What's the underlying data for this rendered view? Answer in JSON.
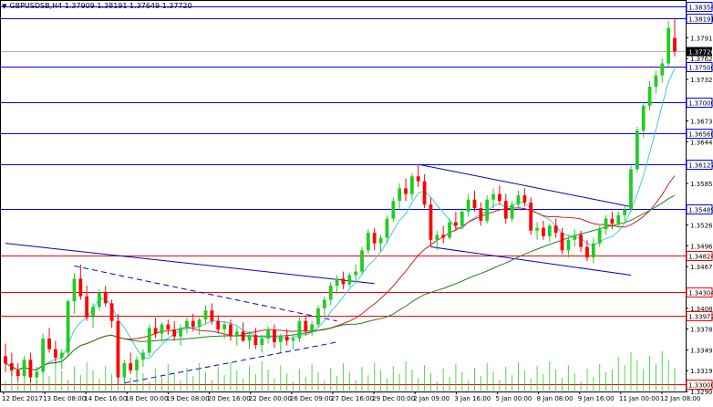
{
  "chart_header": {
    "menu_glyph": "▼",
    "symbol_text": "GBPUSDSB,H4",
    "ohlc_text": "1.37909 1.38191 1.37649 1.37720"
  },
  "chart_data": {
    "type": "candlestick",
    "symbol": "GBPUSDSB",
    "timeframe": "H4",
    "ylim": [
      1.329,
      1.3845
    ],
    "price_ticks": [
      "1.37915",
      "1.37620",
      "1.37325",
      "1.37030",
      "1.36735",
      "1.36440",
      "1.36145",
      "1.35850",
      "1.35555",
      "1.35260",
      "1.34965",
      "1.34670",
      "1.34375",
      "1.34080",
      "1.33785",
      "1.33490",
      "1.33195",
      "1.32900"
    ],
    "x_labels": [
      "12 Dec 2017",
      "13 Dec 08:00",
      "14 Dec 16:00",
      "18 Dec 00:00",
      "19 Dec 08:00",
      "20 Dec 16:00",
      "22 Dec 00:00",
      "26 Dec 09:00",
      "27 Dec 16:00",
      "29 Dec 00:00",
      "2 Jan 09:00",
      "3 Jan 16:00",
      "5 Jan 00:00",
      "8 Jan 08:00",
      "9 Jan 16:00",
      "11 Jan 00:00",
      "12 Jan 08:00"
    ],
    "horizontal_levels": [
      {
        "price": 1.38354,
        "label": "1.38354",
        "color": "#0000ff"
      },
      {
        "price": 1.38191,
        "label": "1.38191",
        "color": "#0000ff"
      },
      {
        "price": 1.375,
        "label": "1.37500",
        "color": "#0000ff"
      },
      {
        "price": 1.37,
        "label": "1.37000",
        "color": "#0000ff"
      },
      {
        "price": 1.3656,
        "label": "1.36560",
        "color": "#0000ff"
      },
      {
        "price": 1.36127,
        "label": "1.36127",
        "color": "#0000ff"
      },
      {
        "price": 1.35489,
        "label": "1.35489",
        "color": "#0000ff"
      },
      {
        "price": 1.34824,
        "label": "1.34824",
        "color": "#ff0000"
      },
      {
        "price": 1.34304,
        "label": "1.34304",
        "color": "#ff0000"
      },
      {
        "price": 1.33972,
        "label": "1.33972",
        "color": "#ff0000"
      },
      {
        "price": 1.33,
        "label": "1.33000",
        "color": "#ff0000"
      }
    ],
    "current_price": {
      "price": 1.3772,
      "label": "1.37720"
    },
    "candles": [
      [
        1.334,
        1.3358,
        1.3318,
        1.333
      ],
      [
        1.333,
        1.3345,
        1.3312,
        1.332
      ],
      [
        1.332,
        1.333,
        1.3305,
        1.3312
      ],
      [
        1.3312,
        1.334,
        1.3308,
        1.3335
      ],
      [
        1.3335,
        1.3345,
        1.3302,
        1.331
      ],
      [
        1.331,
        1.3325,
        1.33,
        1.3318
      ],
      [
        1.3318,
        1.3372,
        1.3315,
        1.3365
      ],
      [
        1.3365,
        1.338,
        1.3345,
        1.335
      ],
      [
        1.335,
        1.3362,
        1.333,
        1.3338
      ],
      [
        1.3338,
        1.335,
        1.3322,
        1.3345
      ],
      [
        1.3345,
        1.342,
        1.334,
        1.3418
      ],
      [
        1.3418,
        1.3458,
        1.34,
        1.345
      ],
      [
        1.345,
        1.347,
        1.342,
        1.3425
      ],
      [
        1.3425,
        1.344,
        1.339,
        1.3395
      ],
      [
        1.3395,
        1.3415,
        1.338,
        1.341
      ],
      [
        1.341,
        1.3435,
        1.3405,
        1.343
      ],
      [
        1.343,
        1.344,
        1.341,
        1.3415
      ],
      [
        1.3415,
        1.342,
        1.338,
        1.339
      ],
      [
        1.339,
        1.34,
        1.33,
        1.331
      ],
      [
        1.331,
        1.3335,
        1.33,
        1.333
      ],
      [
        1.333,
        1.3345,
        1.3315,
        1.332
      ],
      [
        1.332,
        1.334,
        1.331,
        1.3335
      ],
      [
        1.3335,
        1.335,
        1.3325,
        1.3345
      ],
      [
        1.3345,
        1.3385,
        1.334,
        1.338
      ],
      [
        1.338,
        1.3395,
        1.3365,
        1.3372
      ],
      [
        1.3372,
        1.3388,
        1.336,
        1.3385
      ],
      [
        1.3385,
        1.3392,
        1.337,
        1.3378
      ],
      [
        1.3378,
        1.339,
        1.3362,
        1.3368
      ],
      [
        1.3368,
        1.3385,
        1.3355,
        1.338
      ],
      [
        1.338,
        1.3395,
        1.3372,
        1.339
      ],
      [
        1.339,
        1.34,
        1.3375,
        1.3382
      ],
      [
        1.3382,
        1.3395,
        1.337,
        1.3392
      ],
      [
        1.3392,
        1.3412,
        1.3385,
        1.3405
      ],
      [
        1.3405,
        1.3415,
        1.3385,
        1.339
      ],
      [
        1.339,
        1.3398,
        1.3372,
        1.3378
      ],
      [
        1.3378,
        1.339,
        1.3365,
        1.3385
      ],
      [
        1.3385,
        1.3392,
        1.3362,
        1.3368
      ],
      [
        1.3368,
        1.3382,
        1.3355,
        1.3375
      ],
      [
        1.3375,
        1.3388,
        1.336,
        1.3362
      ],
      [
        1.3362,
        1.3375,
        1.335,
        1.337
      ],
      [
        1.337,
        1.338,
        1.335,
        1.3356
      ],
      [
        1.3356,
        1.337,
        1.3345,
        1.3365
      ],
      [
        1.3365,
        1.3382,
        1.3358,
        1.3378
      ],
      [
        1.3378,
        1.3385,
        1.3352,
        1.336
      ],
      [
        1.336,
        1.3372,
        1.3345,
        1.3368
      ],
      [
        1.3368,
        1.3378,
        1.3355,
        1.3362
      ],
      [
        1.3362,
        1.337,
        1.335,
        1.3365
      ],
      [
        1.3365,
        1.3395,
        1.336,
        1.339
      ],
      [
        1.339,
        1.3398,
        1.337,
        1.3375
      ],
      [
        1.3375,
        1.339,
        1.3368,
        1.3385
      ],
      [
        1.3385,
        1.3412,
        1.338,
        1.3408
      ],
      [
        1.3408,
        1.3425,
        1.3398,
        1.342
      ],
      [
        1.342,
        1.3445,
        1.3412,
        1.344
      ],
      [
        1.344,
        1.3455,
        1.3428,
        1.345
      ],
      [
        1.345,
        1.346,
        1.3435,
        1.3442
      ],
      [
        1.3442,
        1.3458,
        1.3438,
        1.3455
      ],
      [
        1.3455,
        1.347,
        1.3445,
        1.346
      ],
      [
        1.346,
        1.3495,
        1.3455,
        1.349
      ],
      [
        1.349,
        1.352,
        1.3485,
        1.3515
      ],
      [
        1.3515,
        1.3522,
        1.349,
        1.35
      ],
      [
        1.35,
        1.3512,
        1.3488,
        1.3508
      ],
      [
        1.3508,
        1.354,
        1.35,
        1.3535
      ],
      [
        1.3535,
        1.3565,
        1.353,
        1.356
      ],
      [
        1.356,
        1.3585,
        1.3548,
        1.3578
      ],
      [
        1.3578,
        1.3592,
        1.356,
        1.357
      ],
      [
        1.357,
        1.36,
        1.3562,
        1.3595
      ],
      [
        1.3595,
        1.3612,
        1.358,
        1.3588
      ],
      [
        1.3588,
        1.3598,
        1.355,
        1.3555
      ],
      [
        1.3555,
        1.3565,
        1.3495,
        1.3505
      ],
      [
        1.3505,
        1.3518,
        1.349,
        1.3512
      ],
      [
        1.3512,
        1.3525,
        1.35,
        1.3508
      ],
      [
        1.3508,
        1.3535,
        1.3505,
        1.353
      ],
      [
        1.353,
        1.3545,
        1.3518,
        1.3525
      ],
      [
        1.3525,
        1.355,
        1.352,
        1.3545
      ],
      [
        1.3545,
        1.357,
        1.3538,
        1.3562
      ],
      [
        1.3562,
        1.3575,
        1.3545,
        1.355
      ],
      [
        1.355,
        1.3558,
        1.3525,
        1.3532
      ],
      [
        1.3532,
        1.3568,
        1.3528,
        1.3562
      ],
      [
        1.3562,
        1.3578,
        1.355,
        1.357
      ],
      [
        1.357,
        1.3582,
        1.3555,
        1.356
      ],
      [
        1.356,
        1.357,
        1.3528,
        1.3535
      ],
      [
        1.3535,
        1.356,
        1.353,
        1.3555
      ],
      [
        1.3555,
        1.3575,
        1.3548,
        1.3568
      ],
      [
        1.3568,
        1.3578,
        1.3552,
        1.3558
      ],
      [
        1.3558,
        1.3565,
        1.3512,
        1.3518
      ],
      [
        1.3518,
        1.353,
        1.3505,
        1.3522
      ],
      [
        1.3522,
        1.3532,
        1.3505,
        1.351
      ],
      [
        1.351,
        1.3528,
        1.3502,
        1.3525
      ],
      [
        1.3525,
        1.3535,
        1.3508,
        1.3515
      ],
      [
        1.3515,
        1.3522,
        1.3485,
        1.349
      ],
      [
        1.349,
        1.3512,
        1.348,
        1.3505
      ],
      [
        1.3505,
        1.352,
        1.3495,
        1.3512
      ],
      [
        1.3512,
        1.3518,
        1.3488,
        1.3495
      ],
      [
        1.3495,
        1.3505,
        1.3475,
        1.348
      ],
      [
        1.348,
        1.3508,
        1.3472,
        1.35
      ],
      [
        1.35,
        1.3525,
        1.3495,
        1.352
      ],
      [
        1.352,
        1.354,
        1.3512,
        1.3535
      ],
      [
        1.3535,
        1.3545,
        1.352,
        1.3528
      ],
      [
        1.3528,
        1.3545,
        1.3522,
        1.354
      ],
      [
        1.354,
        1.3555,
        1.3532,
        1.3548
      ],
      [
        1.3548,
        1.361,
        1.3545,
        1.3605
      ],
      [
        1.3605,
        1.3665,
        1.36,
        1.366
      ],
      [
        1.366,
        1.37,
        1.365,
        1.3695
      ],
      [
        1.3695,
        1.373,
        1.3688,
        1.3722
      ],
      [
        1.3722,
        1.3745,
        1.3712,
        1.3738
      ],
      [
        1.3738,
        1.3762,
        1.3728,
        1.3755
      ],
      [
        1.3755,
        1.3815,
        1.375,
        1.3805
      ],
      [
        1.3791,
        1.3819,
        1.3765,
        1.3772
      ]
    ],
    "overlays": {
      "ma_fast_color": "#40c8e0",
      "ma_mid_color": "#d02020",
      "ma_slow_color": "#208020",
      "trendline_color": "#0000c8"
    },
    "volume_color": "#22cc22",
    "bull_color": "#22cc22",
    "bear_color": "#ff0000"
  }
}
